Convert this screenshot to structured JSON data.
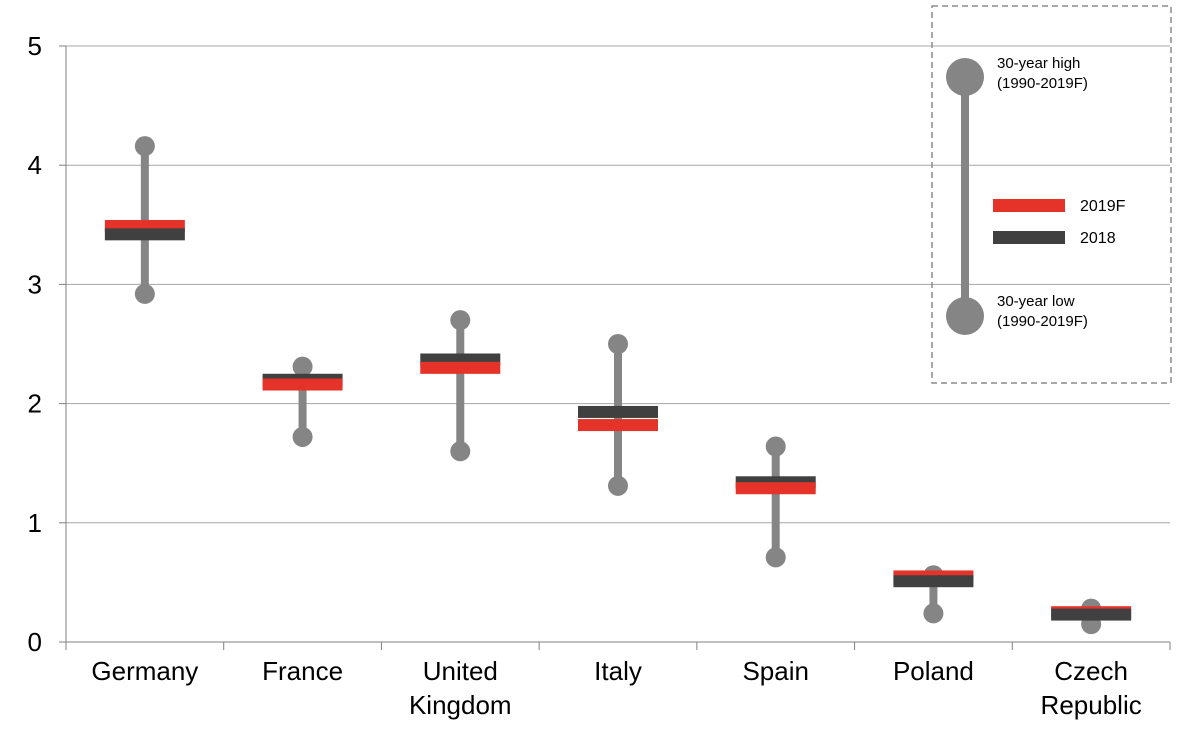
{
  "chart_data": {
    "type": "range",
    "title": "",
    "xlabel": "",
    "ylabel": "",
    "ylim": [
      0,
      5
    ],
    "yticks": [
      "0",
      "1",
      "2",
      "3",
      "4",
      "5"
    ],
    "grid": true,
    "legend_position": "top-right",
    "categories": [
      {
        "line1": "Germany",
        "line2": ""
      },
      {
        "line1": "France",
        "line2": ""
      },
      {
        "line1": "United",
        "line2": "Kingdom"
      },
      {
        "line1": "Italy",
        "line2": ""
      },
      {
        "line1": "Spain",
        "line2": ""
      },
      {
        "line1": "Poland",
        "line2": ""
      },
      {
        "line1": "Czech",
        "line2": "Republic"
      }
    ],
    "series": [
      {
        "name": "30-year high (1990-2019F)",
        "values": [
          4.16,
          2.31,
          2.7,
          2.5,
          1.64,
          0.56,
          0.28
        ]
      },
      {
        "name": "30-year low (1990-2019F)",
        "values": [
          2.92,
          1.72,
          1.6,
          1.31,
          0.71,
          0.24,
          0.15
        ]
      },
      {
        "name": "2019F",
        "values": [
          3.49,
          2.16,
          2.3,
          1.82,
          1.29,
          0.55,
          0.25
        ]
      },
      {
        "name": "2018",
        "values": [
          3.42,
          2.2,
          2.37,
          1.93,
          1.34,
          0.51,
          0.23
        ]
      }
    ],
    "legend": {
      "high_line1": "30-year high",
      "high_line2": "(1990-2019F)",
      "low_line1": "30-year low",
      "low_line2": "(1990-2019F)",
      "series_2019": "2019F",
      "series_2018": "2018"
    },
    "colors": {
      "range": "#858585",
      "y2019": "#e5332a",
      "y2018": "#404040",
      "grid": "#a6a6a6",
      "axis": "#808080"
    }
  }
}
